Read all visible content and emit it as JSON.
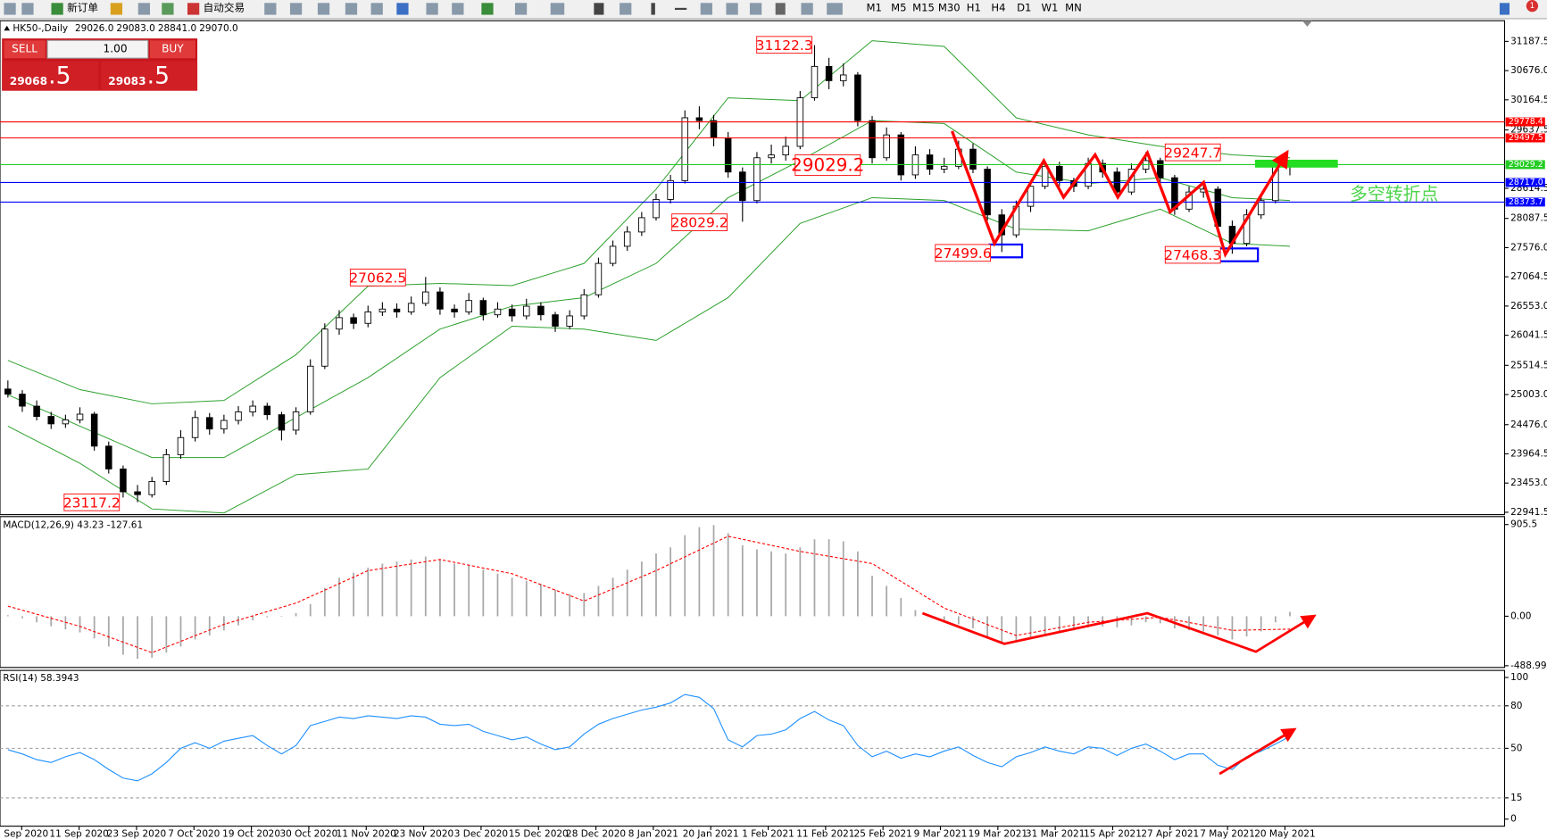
{
  "toolbar": {
    "new_order": "新订单",
    "auto_trading": "自动交易",
    "timeframes": [
      "M1",
      "M5",
      "M15",
      "M30",
      "H1",
      "H4",
      "D1",
      "W1",
      "MN"
    ],
    "notification_count": "1"
  },
  "trade_panel": {
    "sell": "SELL",
    "lot": "1.00",
    "buy": "BUY",
    "bid_main": "29068",
    "bid_frac": ".5",
    "ask_main": "29083",
    "ask_frac": ".5"
  },
  "chart_data": [
    {
      "type": "candlestick",
      "title": "HK50-,Daily",
      "ohlc_header": [
        "29026.0",
        "29083.0",
        "28841.0",
        "29070.0"
      ],
      "candles": [
        [
          25100,
          25250,
          24950,
          25010
        ],
        [
          25010,
          25080,
          24700,
          24800
        ],
        [
          24800,
          24900,
          24550,
          24620
        ],
        [
          24620,
          24700,
          24400,
          24490
        ],
        [
          24490,
          24650,
          24420,
          24560
        ],
        [
          24560,
          24780,
          24500,
          24660
        ],
        [
          24660,
          24700,
          24020,
          24100
        ],
        [
          24100,
          24180,
          23620,
          23700
        ],
        [
          23700,
          23760,
          23200,
          23300
        ],
        [
          23300,
          23420,
          23117.2,
          23250
        ],
        [
          23250,
          23560,
          23200,
          23480
        ],
        [
          23480,
          24050,
          23420,
          23950
        ],
        [
          23950,
          24380,
          23880,
          24250
        ],
        [
          24250,
          24720,
          24180,
          24600
        ],
        [
          24600,
          24680,
          24300,
          24400
        ],
        [
          24400,
          24650,
          24320,
          24550
        ],
        [
          24550,
          24800,
          24480,
          24700
        ],
        [
          24700,
          24900,
          24620,
          24800
        ],
        [
          24800,
          24860,
          24560,
          24650
        ],
        [
          24650,
          24700,
          24200,
          24380
        ],
        [
          24380,
          24780,
          24300,
          24700
        ],
        [
          24700,
          25620,
          24650,
          25500
        ],
        [
          25500,
          26250,
          25450,
          26150
        ],
        [
          26150,
          26480,
          26050,
          26350
        ],
        [
          26350,
          26420,
          26150,
          26250
        ],
        [
          26250,
          26560,
          26180,
          26450
        ],
        [
          26450,
          26620,
          26380,
          26500
        ],
        [
          26500,
          26600,
          26350,
          26450
        ],
        [
          26450,
          26720,
          26400,
          26600
        ],
        [
          26600,
          27062.5,
          26550,
          26800
        ],
        [
          26800,
          26880,
          26400,
          26500
        ],
        [
          26500,
          26580,
          26350,
          26450
        ],
        [
          26450,
          26780,
          26400,
          26650
        ],
        [
          26650,
          26700,
          26300,
          26400
        ],
        [
          26400,
          26620,
          26350,
          26500
        ],
        [
          26500,
          26580,
          26280,
          26380
        ],
        [
          26380,
          26680,
          26320,
          26550
        ],
        [
          26550,
          26620,
          26300,
          26400
        ],
        [
          26400,
          26450,
          26100,
          26200
        ],
        [
          26200,
          26480,
          26150,
          26380
        ],
        [
          26380,
          26850,
          26320,
          26750
        ],
        [
          26750,
          27400,
          26700,
          27300
        ],
        [
          27300,
          27700,
          27250,
          27600
        ],
        [
          27600,
          27950,
          27520,
          27850
        ],
        [
          27850,
          28200,
          27780,
          28100
        ],
        [
          28100,
          28520,
          28050,
          28420
        ],
        [
          28420,
          28850,
          28350,
          28750
        ],
        [
          28750,
          29980,
          28700,
          29850
        ],
        [
          29850,
          30050,
          29650,
          29800
        ],
        [
          29800,
          29900,
          29350,
          29500
        ],
        [
          29500,
          29600,
          28800,
          28900
        ],
        [
          28900,
          28980,
          28029.2,
          28400
        ],
        [
          28400,
          29250,
          28350,
          29150
        ],
        [
          29150,
          29380,
          29050,
          29200
        ],
        [
          29200,
          29520,
          29100,
          29350
        ],
        [
          29350,
          30320,
          29300,
          30200
        ],
        [
          30200,
          31122.3,
          30150,
          30750
        ],
        [
          30750,
          30900,
          30350,
          30500
        ],
        [
          30500,
          30800,
          30400,
          30600
        ],
        [
          30600,
          30650,
          29700,
          29800
        ],
        [
          29800,
          29880,
          29050,
          29150
        ],
        [
          29150,
          29680,
          29100,
          29550
        ],
        [
          29550,
          29600,
          28750,
          28850
        ],
        [
          28850,
          29350,
          28780,
          29200
        ],
        [
          29200,
          29300,
          28850,
          28950
        ],
        [
          28950,
          29150,
          28880,
          29000
        ],
        [
          29000,
          29450,
          28950,
          29300
        ],
        [
          29300,
          29400,
          28880,
          28950
        ],
        [
          28950,
          29000,
          28050,
          28150
        ],
        [
          28150,
          28250,
          27499.6,
          27800
        ],
        [
          27800,
          28400,
          27750,
          28300
        ],
        [
          28300,
          28750,
          28200,
          28650
        ],
        [
          28650,
          29100,
          28600,
          29000
        ],
        [
          29000,
          29080,
          28650,
          28750
        ],
        [
          28750,
          28800,
          28550,
          28650
        ],
        [
          28650,
          29150,
          28600,
          29050
        ],
        [
          29050,
          29120,
          28800,
          28900
        ],
        [
          28900,
          28980,
          28450,
          28550
        ],
        [
          28550,
          29050,
          28500,
          28950
        ],
        [
          28950,
          29247.7,
          28880,
          29100
        ],
        [
          29100,
          29150,
          28700,
          28800
        ],
        [
          28800,
          28850,
          28150,
          28250
        ],
        [
          28250,
          28650,
          28200,
          28550
        ],
        [
          28550,
          28700,
          28450,
          28600
        ],
        [
          28600,
          28650,
          27880,
          27950
        ],
        [
          27950,
          28050,
          27468.3,
          27650
        ],
        [
          27650,
          28250,
          27600,
          28150
        ],
        [
          28150,
          28500,
          28080,
          28400
        ],
        [
          28400,
          29050,
          28350,
          29000
        ],
        [
          29026,
          29083,
          28841,
          29070
        ]
      ],
      "bands": {
        "color": "#2ca02c",
        "index": [
          0,
          5,
          10,
          15,
          20,
          25,
          30,
          35,
          40,
          45,
          50,
          55,
          60,
          65,
          70,
          75,
          80,
          85,
          89
        ],
        "upper": [
          25600,
          25090,
          24840,
          24900,
          25700,
          26900,
          26950,
          26910,
          27300,
          28600,
          30200,
          30150,
          31200,
          31100,
          29850,
          29550,
          29350,
          29200,
          29150
        ],
        "middle": [
          25000,
          24450,
          23900,
          23900,
          24600,
          25300,
          26150,
          26550,
          26700,
          27300,
          28450,
          29100,
          29800,
          29750,
          28900,
          28700,
          28800,
          28450,
          28400
        ],
        "lower": [
          24450,
          23800,
          23000,
          22930,
          23600,
          23700,
          25300,
          26200,
          26150,
          25950,
          26700,
          28000,
          28450,
          28400,
          27900,
          27870,
          28250,
          27650,
          27600
        ]
      },
      "levels": [
        {
          "value": 29778.4,
          "label": "29778.4",
          "color": "#ff0000"
        },
        {
          "value": 29497.5,
          "label": "29497.5",
          "color": "#ff0000"
        },
        {
          "value": 29029.2,
          "label": "29029.2",
          "color": "#22cc22"
        },
        {
          "value": 28717.0,
          "label": "28717.0",
          "color": "#0000ff"
        },
        {
          "value": 28373.7,
          "label": "28373.7",
          "color": "#0000ff"
        }
      ],
      "ylim": [
        22900,
        31550
      ],
      "yticks": [
        31187.5,
        {
          "value": 30676,
          "label": "30676.0"
        },
        30164.5,
        29637.5,
        28614.5,
        28087.5,
        {
          "value": 27576,
          "label": "27576.0"
        },
        27064.5,
        {
          "value": 26553,
          "label": "26553.0"
        },
        26041.5,
        25514.5,
        {
          "value": 25003,
          "label": "25003.0"
        },
        {
          "value": 24476,
          "label": "24476.0"
        },
        23964.5,
        {
          "value": 23453,
          "label": "23453.0"
        },
        22941.5
      ],
      "annotations": [
        "31122.3",
        "29029.2",
        "28029.2",
        "27062.5",
        "23117.2",
        "27499.6",
        "29247.7",
        "27468.3"
      ],
      "note": "多空转折点"
    },
    {
      "type": "macd",
      "title": "MACD(12,26,9) 43.23 -127.61",
      "bar_color": "#a8a8a8",
      "signal_color": "#ff0000",
      "macd": [
        10,
        -20,
        -60,
        -100,
        -130,
        -160,
        -220,
        -300,
        -380,
        -420,
        -410,
        -360,
        -300,
        -230,
        -190,
        -140,
        -90,
        -40,
        -10,
        -5,
        30,
        120,
        280,
        380,
        430,
        480,
        520,
        540,
        560,
        590,
        560,
        520,
        500,
        460,
        420,
        380,
        350,
        320,
        260,
        220,
        230,
        300,
        380,
        460,
        540,
        620,
        680,
        800,
        880,
        900,
        820,
        700,
        660,
        640,
        620,
        680,
        760,
        760,
        740,
        640,
        400,
        300,
        180,
        60,
        0,
        -60,
        -80,
        -120,
        -200,
        -260,
        -250,
        -220,
        -180,
        -160,
        -140,
        -110,
        -100,
        -110,
        -90,
        -60,
        -70,
        -120,
        -140,
        -150,
        -190,
        -230,
        -200,
        -150,
        -60,
        43.23
      ],
      "signal_index": [
        0,
        5,
        10,
        15,
        20,
        25,
        30,
        35,
        40,
        45,
        50,
        55,
        60,
        65,
        70,
        75,
        80,
        85,
        89
      ],
      "signal": [
        100,
        -100,
        -360,
        -80,
        130,
        450,
        560,
        420,
        150,
        450,
        790,
        640,
        520,
        80,
        -190,
        -60,
        -10,
        -140,
        -127.61
      ],
      "ylim": [
        -506,
        984
      ],
      "yticks": [
        905.5,
        {
          "value": 0,
          "label": "0.00"
        },
        -488.99
      ]
    },
    {
      "type": "line",
      "title": "RSI(14) 58.3943",
      "color": "#1e90ff",
      "values": [
        49,
        46,
        42,
        40,
        44,
        47,
        42,
        35,
        29,
        27,
        32,
        40,
        50,
        54,
        50,
        55,
        57,
        59,
        52,
        46,
        52,
        66,
        69,
        72,
        71,
        73,
        72,
        71,
        73,
        72,
        67,
        66,
        67,
        62,
        59,
        56,
        58,
        53,
        49,
        51,
        60,
        67,
        71,
        74,
        77,
        79,
        82,
        88,
        86,
        78,
        56,
        51,
        59,
        60,
        63,
        71,
        76,
        70,
        66,
        52,
        44,
        48,
        43,
        46,
        44,
        48,
        51,
        45,
        40,
        37,
        44,
        47,
        51,
        48,
        46,
        51,
        50,
        45,
        50,
        53,
        48,
        42,
        46,
        46,
        38,
        35,
        44,
        48,
        53,
        58.3943
      ],
      "levels": [
        80,
        50,
        15
      ],
      "ylim": [
        -5,
        105
      ],
      "yticks": [
        100,
        80,
        50,
        15,
        0
      ],
      "x_labels": [
        "1 Sep 2020",
        "11 Sep 2020",
        "23 Sep 2020",
        "7 Oct 2020",
        "19 Oct 2020",
        "30 Oct 2020",
        "11 Nov 2020",
        "23 Nov 2020",
        "3 Dec 2020",
        "15 Dec 2020",
        "28 Dec 2020",
        "8 Jan 2021",
        "20 Jan 2021",
        "1 Feb 2021",
        "11 Feb 2021",
        "25 Feb 2021",
        "9 Mar 2021",
        "19 Mar 2021",
        "31 Mar 2021",
        "15 Apr 2021",
        "27 Apr 2021",
        "7 May 2021",
        "20 May 2021"
      ]
    }
  ]
}
